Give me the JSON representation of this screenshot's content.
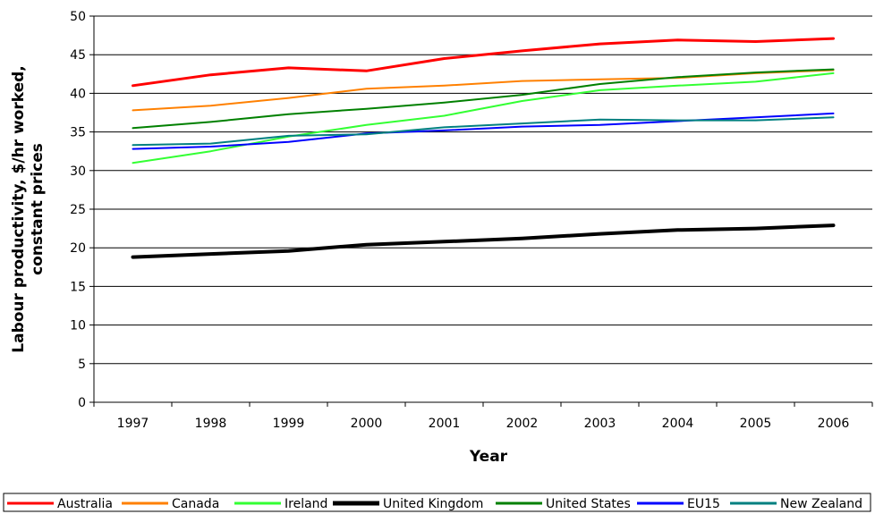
{
  "chart_data": {
    "type": "line",
    "title": "",
    "xlabel": "Year",
    "ylabel_lines": [
      "Labour productivity, $/hr worked,",
      "constant prices"
    ],
    "ylim": [
      0,
      50
    ],
    "yticks": [
      0,
      5,
      10,
      15,
      20,
      25,
      30,
      35,
      40,
      45,
      50
    ],
    "categories": [
      "1997",
      "1998",
      "1999",
      "2000",
      "2001",
      "2002",
      "2003",
      "2004",
      "2005",
      "2006"
    ],
    "grid": true,
    "legend_position": "bottom",
    "series": [
      {
        "name": "Australia",
        "color": "#ff0000",
        "width": 3,
        "values": [
          41.0,
          42.4,
          43.3,
          42.9,
          44.5,
          45.5,
          46.4,
          46.9,
          46.7,
          47.1
        ]
      },
      {
        "name": "Canada",
        "color": "#ff8000",
        "width": 2,
        "values": [
          37.8,
          38.4,
          39.4,
          40.6,
          41.0,
          41.6,
          41.8,
          42.0,
          42.6,
          43.0
        ]
      },
      {
        "name": "Ireland",
        "color": "#33ff33",
        "width": 2,
        "values": [
          31.0,
          32.5,
          34.4,
          35.9,
          37.1,
          39.0,
          40.4,
          41.0,
          41.5,
          42.6
        ]
      },
      {
        "name": "United Kingdom",
        "color": "#000000",
        "width": 4,
        "values": [
          18.8,
          19.2,
          19.6,
          20.4,
          20.8,
          21.2,
          21.8,
          22.3,
          22.5,
          22.9
        ]
      },
      {
        "name": "United States",
        "color": "#008000",
        "width": 2,
        "values": [
          35.5,
          36.3,
          37.3,
          38.0,
          38.8,
          39.8,
          41.2,
          42.1,
          42.7,
          43.1
        ]
      },
      {
        "name": "EU15",
        "color": "#0000ff",
        "width": 2,
        "values": [
          32.8,
          33.1,
          33.7,
          34.8,
          35.2,
          35.7,
          35.9,
          36.4,
          36.9,
          37.4
        ]
      },
      {
        "name": "New Zealand",
        "color": "#008080",
        "width": 2,
        "values": [
          33.3,
          33.5,
          34.5,
          34.7,
          35.6,
          36.1,
          36.6,
          36.5,
          36.5,
          36.9
        ]
      }
    ]
  }
}
